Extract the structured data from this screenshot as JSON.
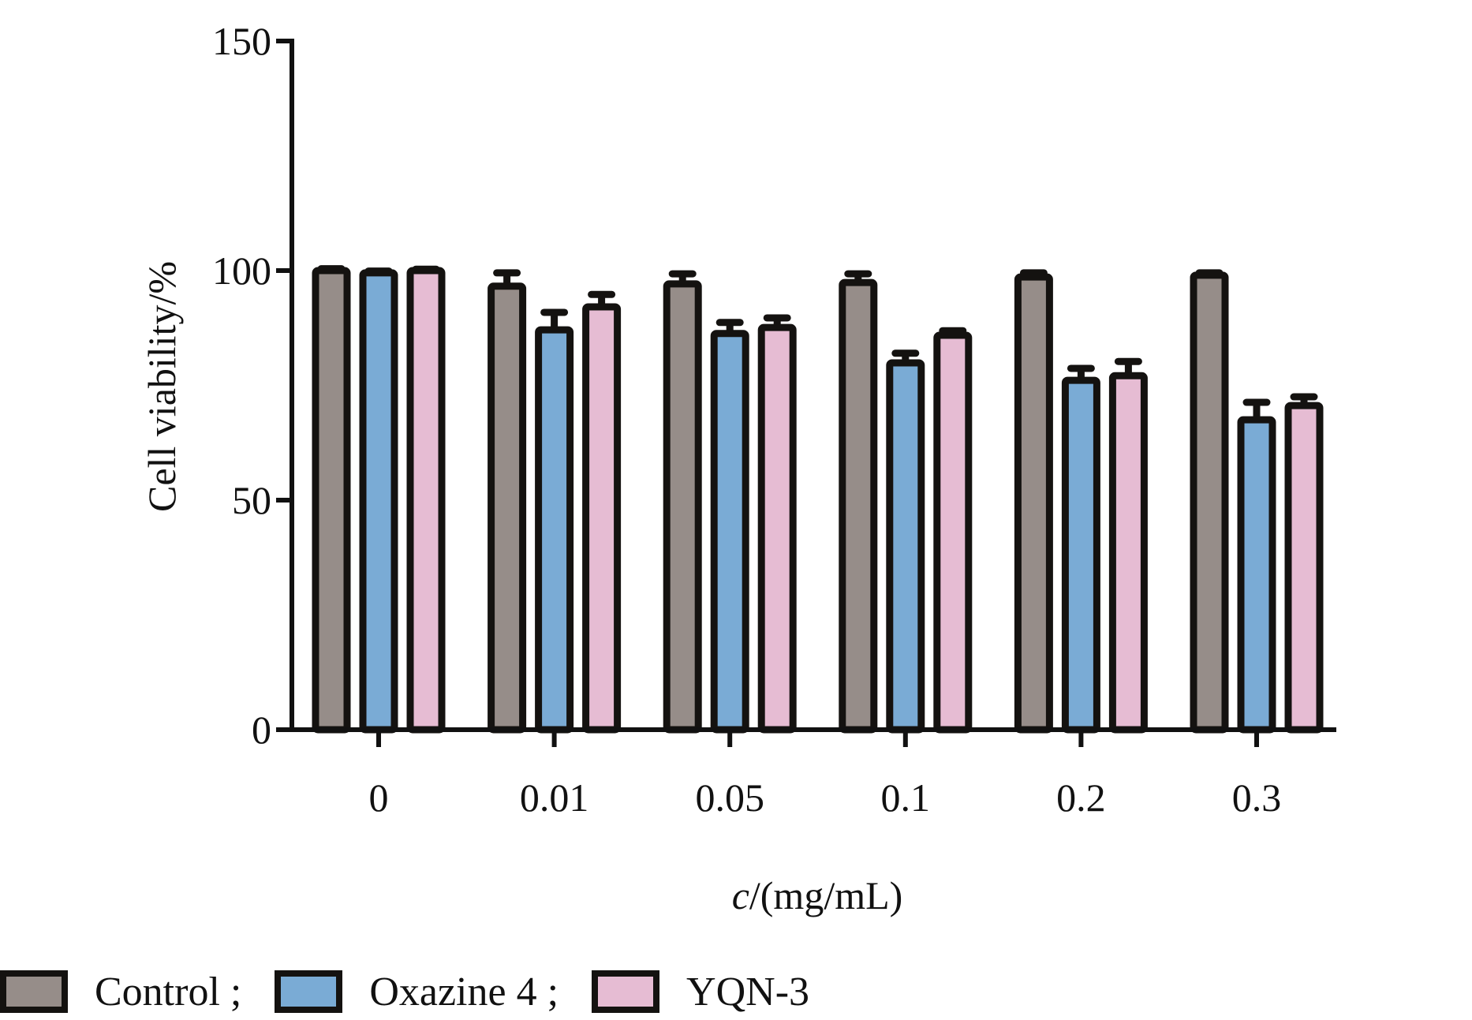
{
  "chart_data": {
    "type": "bar",
    "title": "",
    "xlabel_italic": "c",
    "xlabel_rest": "/(mg/mL)",
    "ylabel": "Cell viability/%",
    "ylim": [
      0,
      150
    ],
    "yticks": [
      0,
      50,
      100,
      150
    ],
    "ytick_labels": [
      "0",
      "50",
      "100",
      "150"
    ],
    "categories": [
      "0",
      "0.01",
      "0.05",
      "0.1",
      "0.2",
      "0.3"
    ],
    "grid": false,
    "legend_position": "bottom",
    "series": [
      {
        "name": "Control",
        "legend_label": "Control ;",
        "color": "#968d89",
        "values": [
          100.0,
          96.6,
          97.1,
          97.4,
          98.6,
          99.0
        ],
        "errors": [
          0.4,
          2.9,
          2.2,
          1.9,
          0.9,
          0.5
        ]
      },
      {
        "name": "Oxazine 4",
        "legend_label": "Oxazine 4 ;",
        "color": "#7aabd5",
        "values": [
          99.5,
          87.1,
          86.3,
          79.9,
          76.1,
          67.5
        ],
        "errors": [
          0.4,
          3.8,
          2.4,
          2.1,
          2.6,
          3.8
        ]
      },
      {
        "name": "YQN-3",
        "legend_label": "YQN-3",
        "color": "#e6bcd3",
        "values": [
          100.0,
          92.1,
          87.6,
          85.9,
          77.1,
          70.6
        ],
        "errors": [
          0.3,
          2.7,
          2.1,
          1.0,
          3.1,
          1.9
        ]
      }
    ]
  }
}
